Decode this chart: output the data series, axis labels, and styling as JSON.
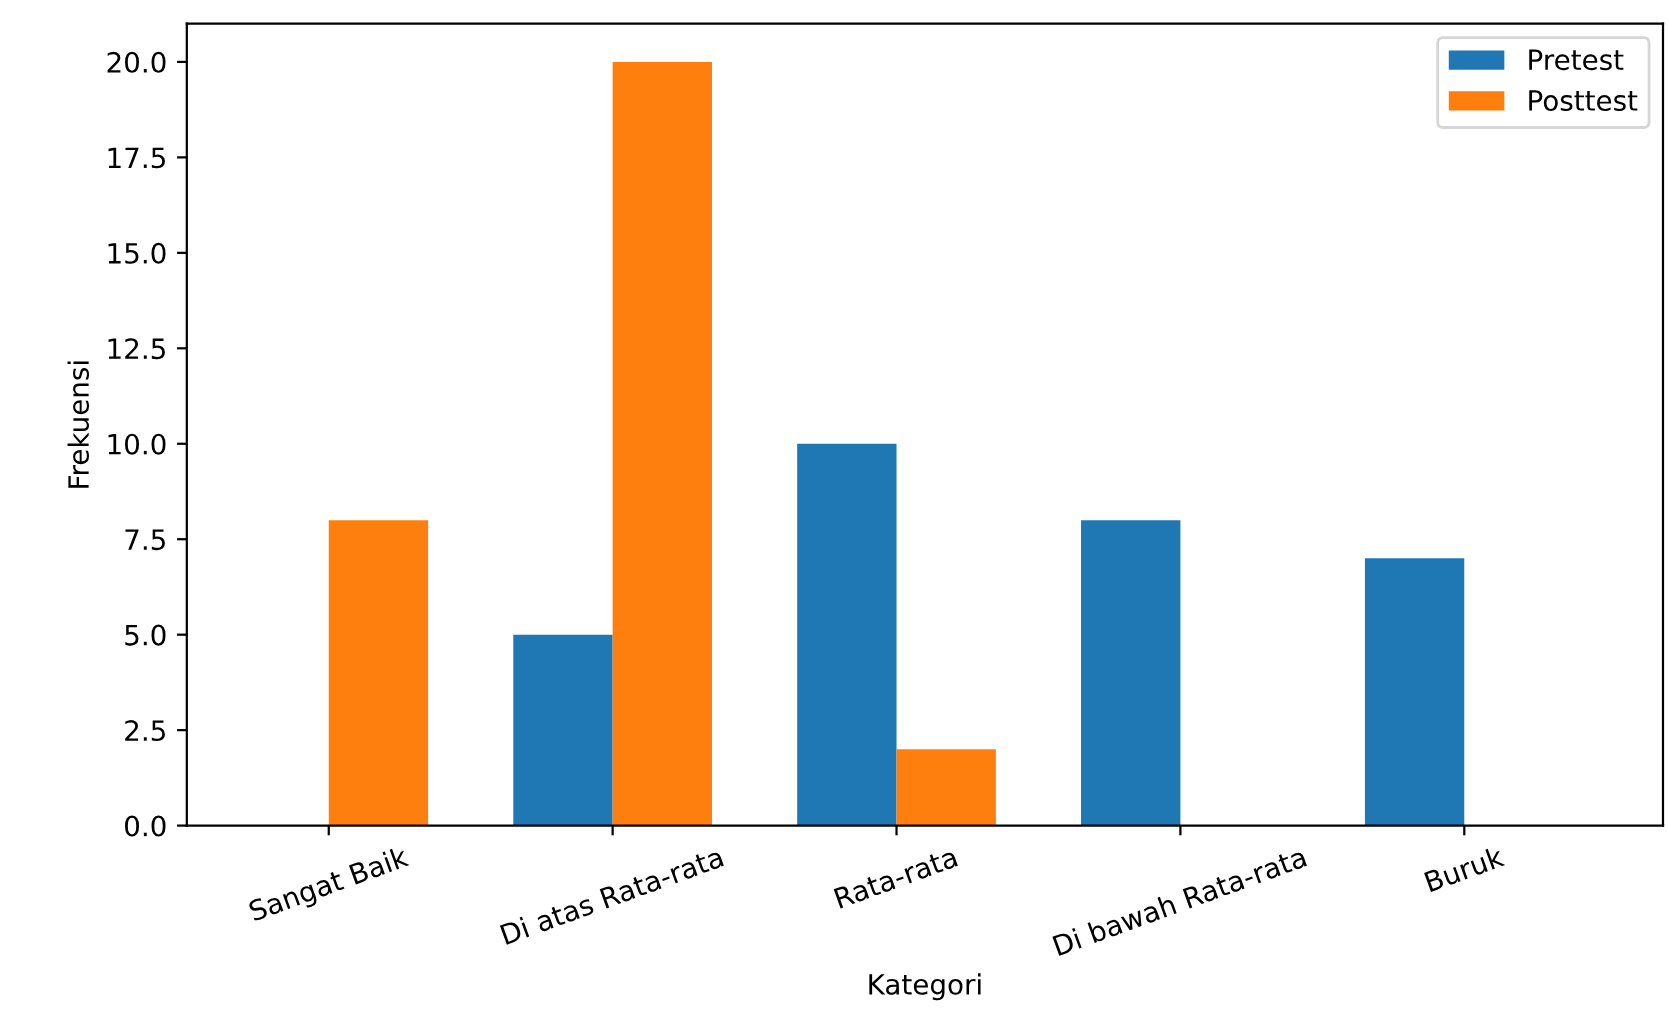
{
  "chart_data": {
    "type": "bar",
    "xlabel": "Kategori",
    "ylabel": "Frekuensi",
    "categories": [
      "Sangat Baik",
      "Di atas Rata-rata",
      "Rata-rata",
      "Di bawah Rata-rata",
      "Buruk"
    ],
    "series": [
      {
        "name": "Pretest",
        "color": "#1f77b4",
        "values": [
          0,
          5,
          10,
          8,
          7
        ]
      },
      {
        "name": "Posttest",
        "color": "#ff7f0e",
        "values": [
          8,
          20,
          2,
          0,
          0
        ]
      }
    ],
    "ylim": [
      0,
      21
    ],
    "yticks": [
      {
        "value": 0,
        "label": "0.0"
      },
      {
        "value": 2.5,
        "label": "2.5"
      },
      {
        "value": 5,
        "label": "5.0"
      },
      {
        "value": 7.5,
        "label": "7.5"
      },
      {
        "value": 10,
        "label": "10.0"
      },
      {
        "value": 12.5,
        "label": "12.5"
      },
      {
        "value": 15,
        "label": "15.0"
      },
      {
        "value": 17.5,
        "label": "17.5"
      },
      {
        "value": 20,
        "label": "20.0"
      }
    ],
    "legend": "top right",
    "grid": false
  }
}
